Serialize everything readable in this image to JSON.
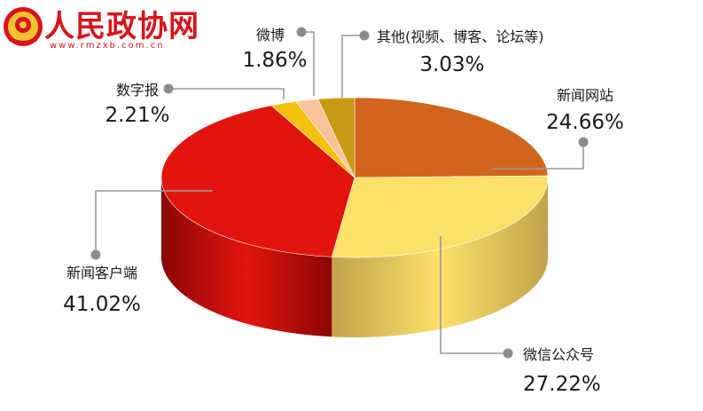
{
  "logo": {
    "name": "人民政协网",
    "url": "www.rmzxb.com.cn"
  },
  "chart_data": {
    "type": "pie",
    "title": "",
    "slices": [
      {
        "label": "新闻网站",
        "value": 24.66,
        "value_text": "24.66%",
        "color": "#d2651c",
        "side": "#9c4010"
      },
      {
        "label": "微信公众号",
        "value": 27.22,
        "value_text": "27.22%",
        "color": "#fbe06a",
        "side": "#c2a24a"
      },
      {
        "label": "新闻客户端",
        "value": 41.02,
        "value_text": "41.02%",
        "color": "#e2150e",
        "side": "#8a0606"
      },
      {
        "label": "数字报",
        "value": 2.21,
        "value_text": "2.21%",
        "color": "#f4c20c",
        "side": "#b08a08"
      },
      {
        "label": "微博",
        "value": 1.86,
        "value_text": "1.86%",
        "color": "#f6c39a",
        "side": "#c4916a"
      },
      {
        "label": "其他(视频、博客、论坛等)",
        "value": 3.03,
        "value_text": "3.03%",
        "color": "#c99a14",
        "side": "#8c6a0a"
      }
    ]
  }
}
